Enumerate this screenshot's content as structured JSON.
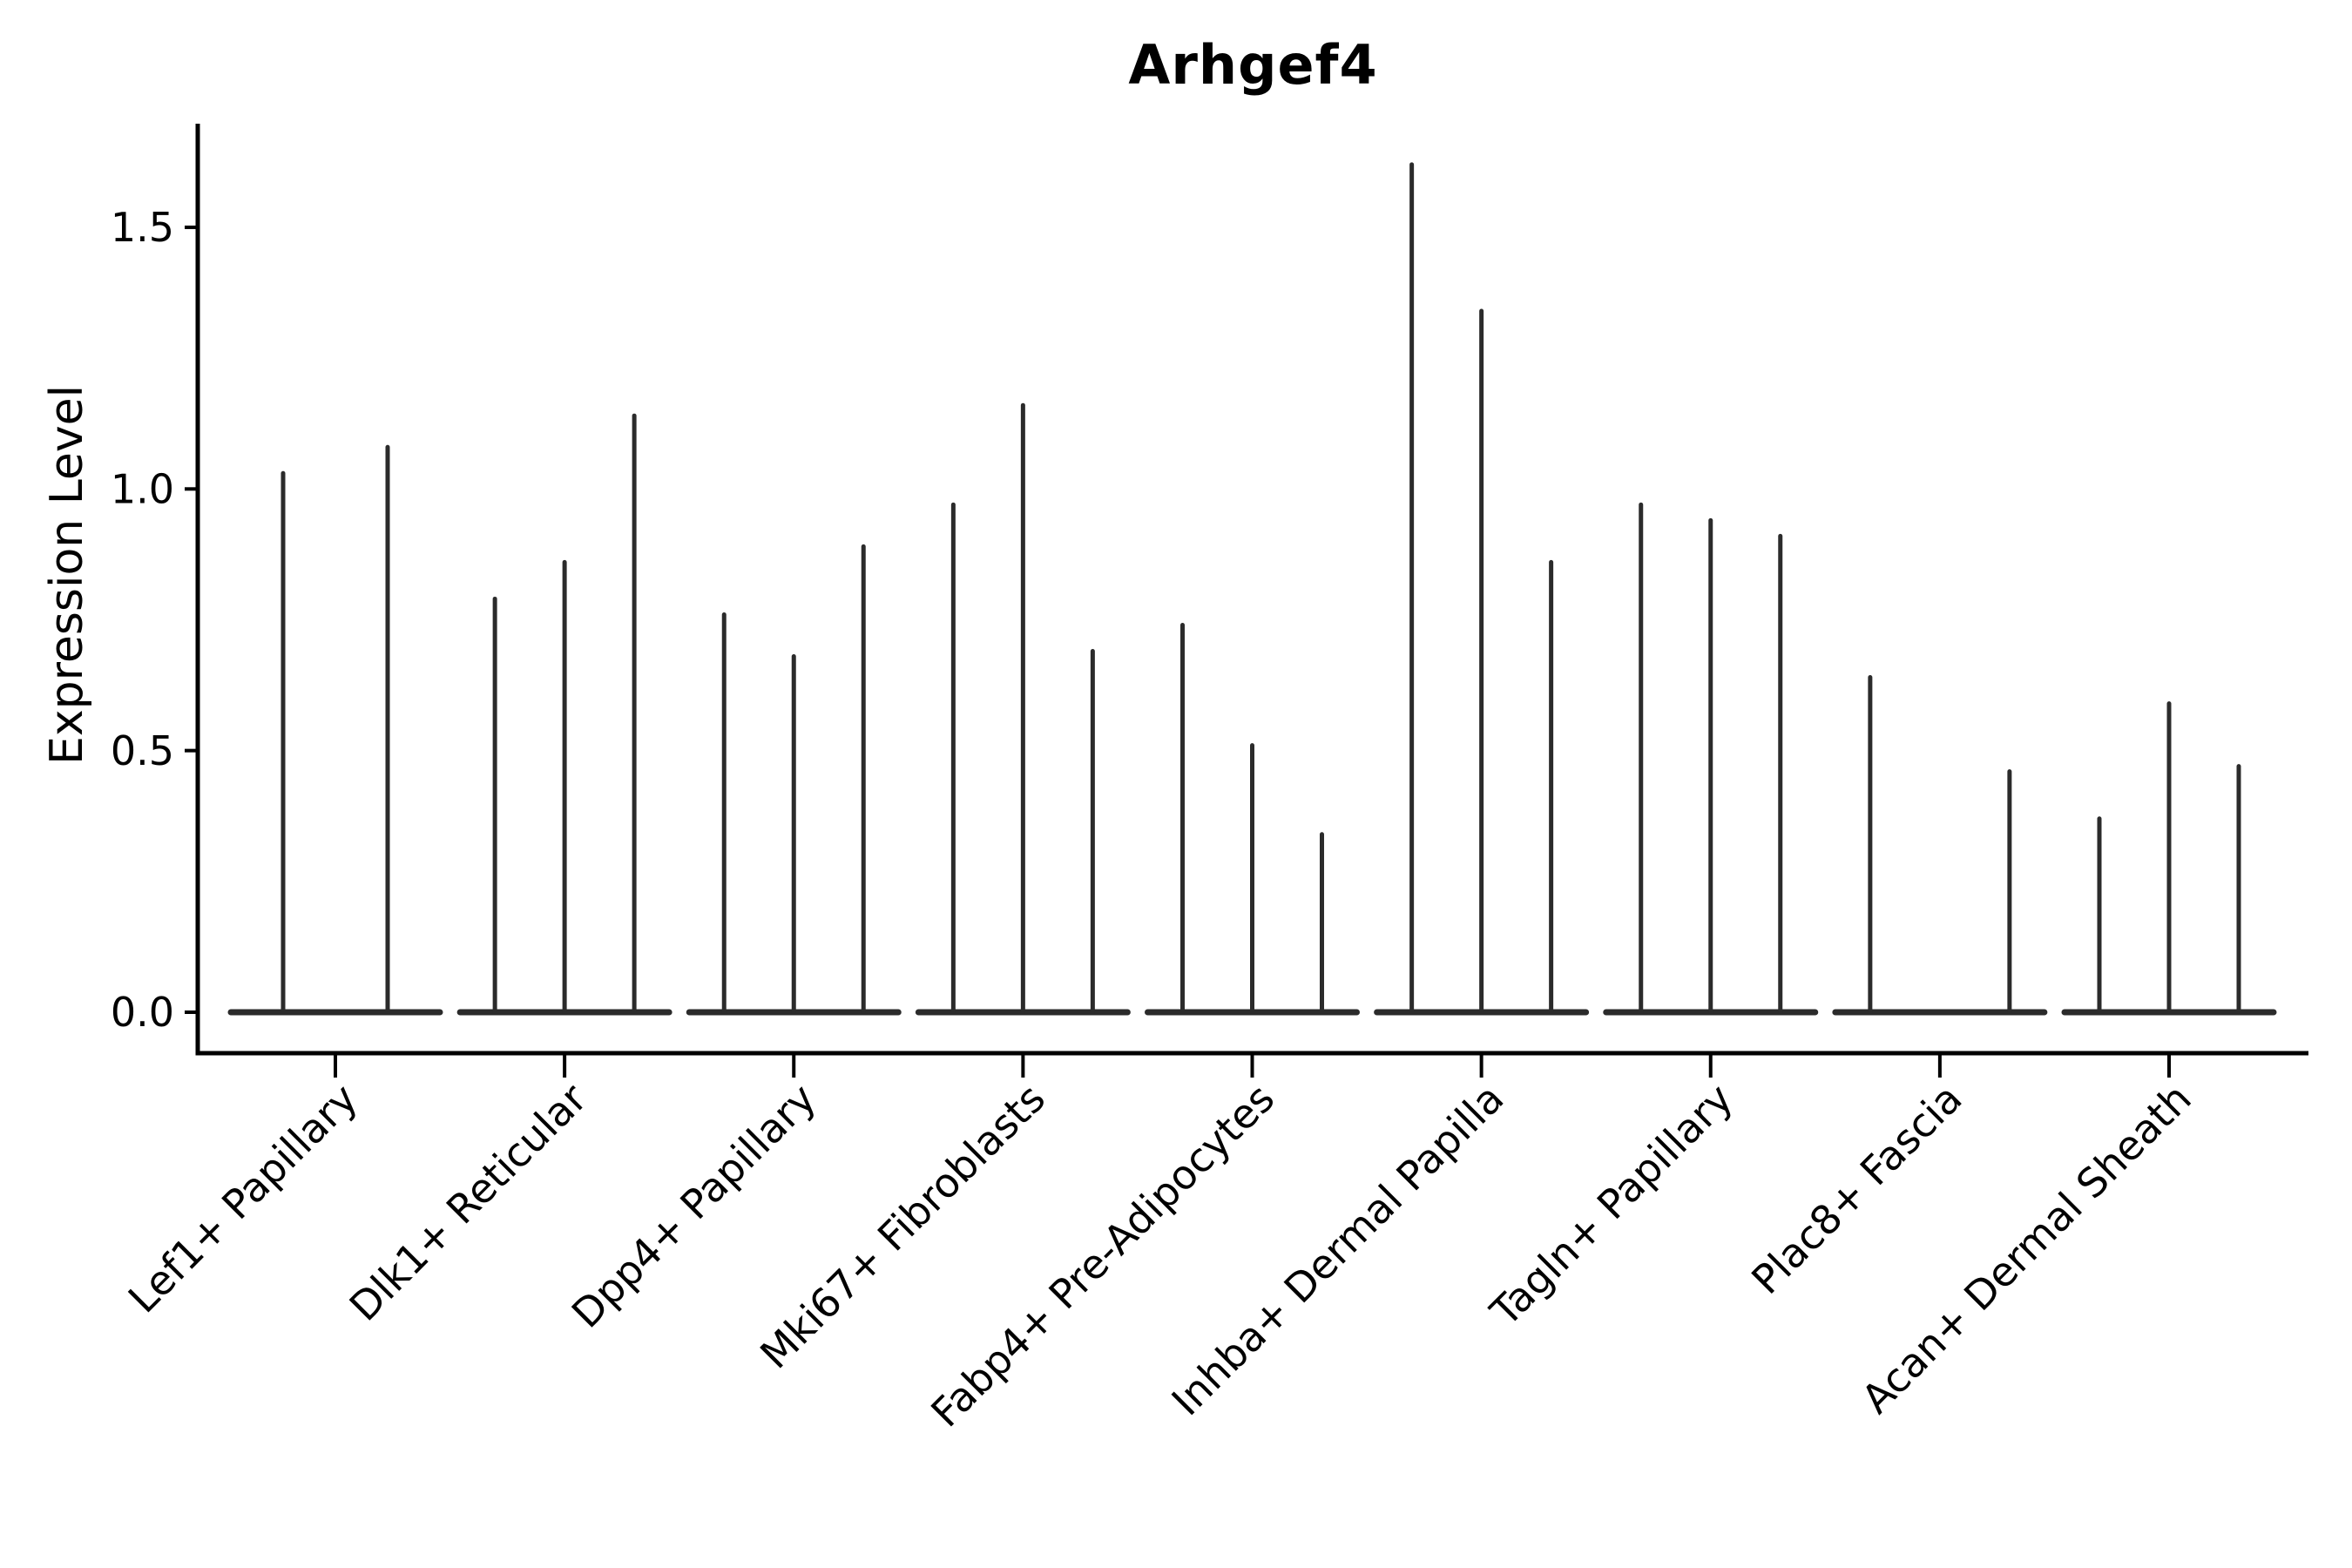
{
  "title": "Arhgef4",
  "axes": {
    "ylabel": "Expression Level",
    "yticks": [
      {
        "value": 0.0,
        "label": "0.0"
      },
      {
        "value": 0.5,
        "label": "0.5"
      },
      {
        "value": 1.0,
        "label": "1.0"
      },
      {
        "value": 1.5,
        "label": "1.5"
      }
    ]
  },
  "colors": {
    "background": "#ffffff",
    "violin": "#2b2b2b",
    "axis": "#000000",
    "text": "#000000"
  },
  "chart_data": {
    "type": "violin",
    "title": "Arhgef4",
    "xlabel": "",
    "ylabel": "Expression Level",
    "ylim": [
      -0.08,
      1.7
    ],
    "grid": false,
    "legend": "none",
    "description": "Sparse single-cell expression violins: each category shows 2-3 narrow violins collapsed to a flat bar at 0 with a thin spike up to the maximum expression value.",
    "categories": [
      "Lef1+ Papillary",
      "Dlk1+ Reticular",
      "Dpp4+ Papillary",
      "Mki67+ Fibroblasts",
      "Fabp4+ Pre-Adipocytes",
      "Inhba+ Dermal Papilla",
      "Tagln+ Papillary",
      "Plac8+ Fascia",
      "Acan+ Dermal Sheath"
    ],
    "groups": [
      {
        "category": "Lef1+ Papillary",
        "spike_max_values": [
          1.03,
          1.08
        ]
      },
      {
        "category": "Dlk1+ Reticular",
        "spike_max_values": [
          0.79,
          0.86,
          1.14
        ]
      },
      {
        "category": "Dpp4+ Papillary",
        "spike_max_values": [
          0.76,
          0.68,
          0.89
        ]
      },
      {
        "category": "Mki67+ Fibroblasts",
        "spike_max_values": [
          0.97,
          1.16,
          0.69
        ]
      },
      {
        "category": "Fabp4+ Pre-Adipocytes",
        "spike_max_values": [
          0.74,
          0.51,
          0.34
        ]
      },
      {
        "category": "Inhba+ Dermal Papilla",
        "spike_max_values": [
          1.62,
          1.34,
          0.86
        ]
      },
      {
        "category": "Tagln+ Papillary",
        "spike_max_values": [
          0.97,
          0.94,
          0.91
        ]
      },
      {
        "category": "Plac8+ Fascia",
        "spike_max_values": [
          0.64,
          0,
          0.46
        ]
      },
      {
        "category": "Acan+ Dermal Sheath",
        "spike_max_values": [
          0.37,
          0.59,
          0.47
        ]
      }
    ]
  }
}
